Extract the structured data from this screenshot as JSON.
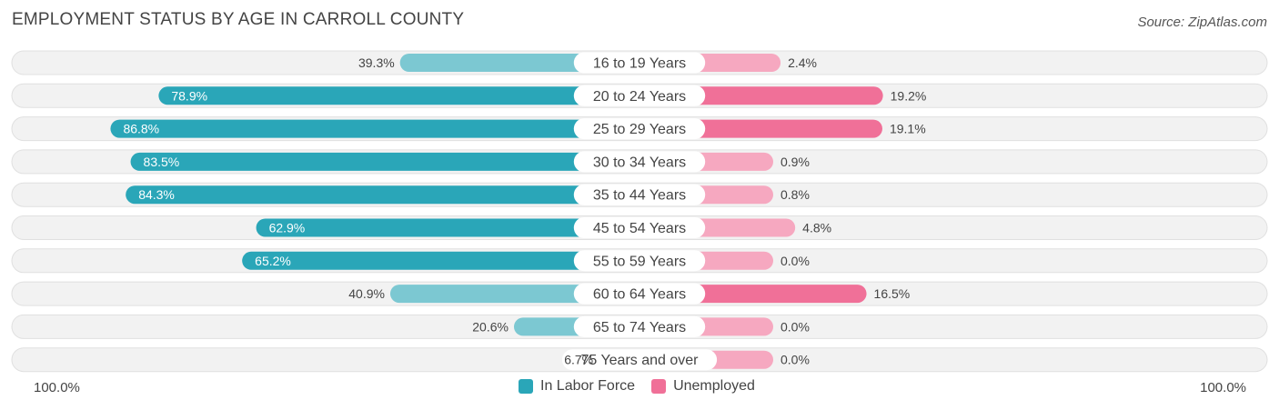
{
  "chart_data": {
    "type": "bar",
    "orientation": "horizontal-diverging",
    "title": "EMPLOYMENT STATUS BY AGE IN CARROLL COUNTY",
    "source": "Source: ZipAtlas.com",
    "categories": [
      "16 to 19 Years",
      "20 to 24 Years",
      "25 to 29 Years",
      "30 to 34 Years",
      "35 to 44 Years",
      "45 to 54 Years",
      "55 to 59 Years",
      "60 to 64 Years",
      "65 to 74 Years",
      "75 Years and over"
    ],
    "series": [
      {
        "name": "In Labor Force",
        "color": "#2AA6B8",
        "light_color": "#7CC8D2",
        "values": [
          39.3,
          78.9,
          86.8,
          83.5,
          84.3,
          62.9,
          65.2,
          40.9,
          20.6,
          6.7
        ],
        "labels": [
          "39.3%",
          "78.9%",
          "86.8%",
          "83.5%",
          "84.3%",
          "62.9%",
          "65.2%",
          "40.9%",
          "20.6%",
          "6.7%"
        ]
      },
      {
        "name": "Unemployed",
        "color": "#F07098",
        "light_color": "#F6A8C0",
        "values": [
          2.4,
          19.2,
          19.1,
          0.9,
          0.8,
          4.8,
          0.0,
          16.5,
          0.0,
          0.0
        ],
        "labels": [
          "2.4%",
          "19.2%",
          "19.1%",
          "0.9%",
          "0.8%",
          "4.8%",
          "0.0%",
          "16.5%",
          "0.0%",
          "0.0%"
        ]
      }
    ],
    "axis_left_label": "100.0%",
    "axis_right_label": "100.0%",
    "xlim": [
      -100,
      100
    ],
    "legend_position": "bottom-center"
  }
}
